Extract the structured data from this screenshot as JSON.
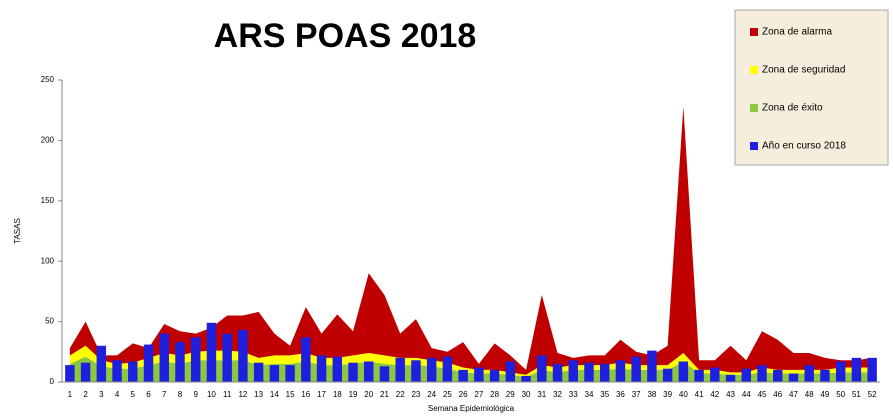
{
  "chart_data": {
    "type": "stacked-area-bar",
    "title": "ARS POAS 2018",
    "y_label": "TASAS",
    "x_label": "Semana Epidemiológica",
    "categories": [
      1,
      2,
      3,
      4,
      5,
      6,
      7,
      8,
      9,
      10,
      11,
      12,
      13,
      14,
      15,
      16,
      17,
      18,
      19,
      20,
      21,
      22,
      23,
      24,
      25,
      26,
      27,
      28,
      29,
      30,
      31,
      32,
      33,
      34,
      35,
      36,
      37,
      38,
      39,
      40,
      41,
      42,
      43,
      44,
      45,
      46,
      47,
      48,
      49,
      50,
      51,
      52
    ],
    "ylim": [
      0,
      250
    ],
    "yticks": [
      0,
      50,
      100,
      150,
      200,
      250
    ],
    "legend": "top-right",
    "areas": [
      {
        "name": "Zona de éxito",
        "color": "#8dc63f",
        "values": [
          15,
          21,
          13,
          11,
          11,
          14,
          17,
          15,
          18,
          18,
          18,
          18,
          14,
          15,
          15,
          17,
          14,
          14,
          15,
          17,
          15,
          14,
          14,
          13,
          11,
          8,
          7,
          7,
          6,
          4,
          10,
          8,
          10,
          10,
          10,
          11,
          10,
          10,
          10,
          17,
          7,
          7,
          6,
          6,
          8,
          7,
          7,
          7,
          7,
          8,
          8,
          8
        ]
      },
      {
        "name": "Zona de seguridad",
        "color": "#ffff00",
        "values": [
          7,
          9,
          5,
          4,
          5,
          6,
          7,
          7,
          7,
          8,
          8,
          7,
          6,
          7,
          7,
          7,
          6,
          6,
          7,
          7,
          7,
          6,
          6,
          5,
          5,
          4,
          3,
          3,
          2,
          2,
          4,
          4,
          4,
          4,
          4,
          5,
          4,
          4,
          4,
          7,
          3,
          3,
          2,
          2,
          4,
          3,
          3,
          3,
          3,
          4,
          4,
          4
        ]
      },
      {
        "name": "Zona de alarma",
        "color": "#c00000",
        "values": [
          6,
          20,
          4,
          7,
          16,
          8,
          24,
          20,
          15,
          19,
          29,
          30,
          38,
          18,
          8,
          38,
          20,
          36,
          20,
          66,
          50,
          20,
          32,
          10,
          9,
          21,
          5,
          22,
          14,
          4,
          58,
          12,
          6,
          8,
          8,
          19,
          11,
          8,
          16,
          204,
          8,
          8,
          22,
          10,
          30,
          25,
          14,
          14,
          10,
          6,
          6,
          8
        ]
      }
    ],
    "series": [
      {
        "name": "Año en curso 2018",
        "color": "#1f1fe0",
        "values": [
          14,
          16,
          30,
          18,
          17,
          31,
          40,
          33,
          37,
          49,
          40,
          43,
          16,
          14,
          14,
          37,
          22,
          21,
          16,
          17,
          13,
          20,
          18,
          20,
          21,
          10,
          12,
          10,
          17,
          5,
          22,
          15,
          18,
          16,
          15,
          18,
          21,
          26,
          11,
          17,
          10,
          12,
          6,
          11,
          14,
          10,
          7,
          14,
          10,
          17,
          20,
          20
        ]
      }
    ]
  }
}
